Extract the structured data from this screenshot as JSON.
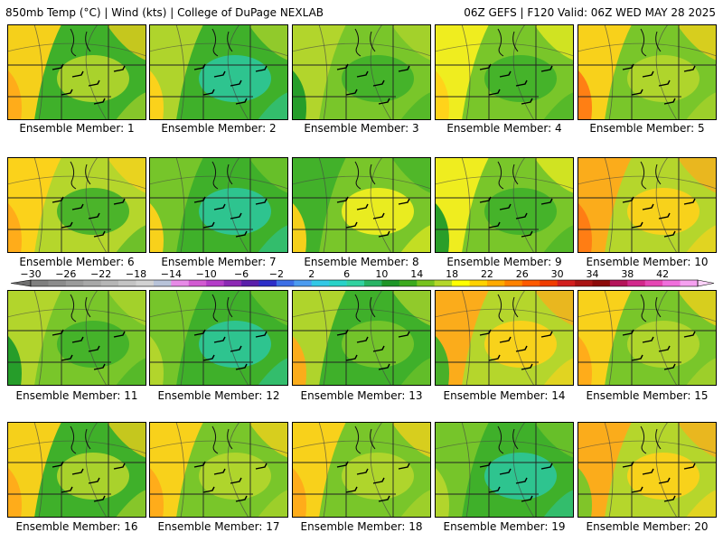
{
  "header": {
    "left": "850mb Temp (°C) | Wind (kts) | College of DuPage NEXLAB",
    "right": "06Z GEFS | F120 Valid: 06Z WED MAY 28 2025"
  },
  "member_label_prefix": "Ensemble Member:",
  "members": [
    1,
    2,
    3,
    4,
    5,
    6,
    7,
    8,
    9,
    10,
    11,
    12,
    13,
    14,
    15,
    16,
    17,
    18,
    19,
    20
  ],
  "colorbar": {
    "ticks": [
      "−30",
      "−26",
      "−22",
      "−18",
      "−14",
      "−10",
      "−6",
      "−2",
      "2",
      "6",
      "10",
      "14",
      "18",
      "22",
      "26",
      "30",
      "34",
      "38",
      "42"
    ],
    "colors": [
      "#7f7f7f",
      "#8c8c8c",
      "#9b9b9b",
      "#a8a8a8",
      "#b6b6b6",
      "#c4c4c4",
      "#d2d2d2",
      "#b8c3d9",
      "#e78ae7",
      "#d25ad2",
      "#b43cc8",
      "#8c28b4",
      "#5a1eaa",
      "#2d2dc8",
      "#3c6ee6",
      "#4b9bf0",
      "#32c8e6",
      "#28d2c8",
      "#32d2a0",
      "#28b464",
      "#1e9628",
      "#3caa1e",
      "#78c31e",
      "#b4d728",
      "#ffff00",
      "#ffd200",
      "#ffaa00",
      "#ff8200",
      "#ff5a00",
      "#f03c00",
      "#d21e1e",
      "#aa1414",
      "#8c0a0a",
      "#b4145a",
      "#d2288c",
      "#e646b4",
      "#f06edc",
      "#f5a0f0"
    ]
  },
  "palette": {
    "dark_green": "#1f9a2a",
    "green": "#3fb02a",
    "light_green": "#79c62a",
    "yellow_green": "#b5d62c",
    "yellow": "#f5ef1f",
    "gold": "#ffd21a",
    "orange": "#ffaa1a",
    "dark_orange": "#ff7a14",
    "teal": "#2cc79a"
  }
}
